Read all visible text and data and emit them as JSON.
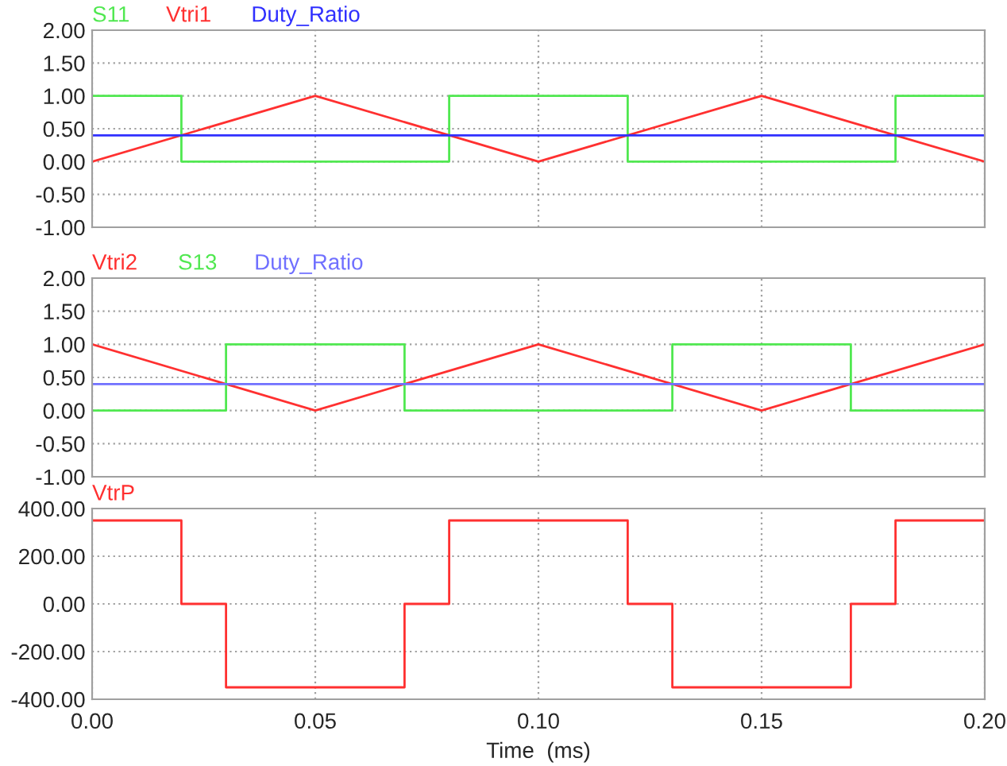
{
  "chart_data": [
    {
      "type": "line",
      "xlim": [
        0,
        0.2
      ],
      "ylim": [
        -1,
        2
      ],
      "xticks": [
        {
          "value": 0,
          "label": null
        },
        {
          "value": 0.05,
          "label": null
        },
        {
          "value": 0.1,
          "label": null
        },
        {
          "value": 0.15,
          "label": null
        },
        {
          "value": 0.2,
          "label": null
        }
      ],
      "yticks": [
        {
          "value": -1,
          "label": "-1.00"
        },
        {
          "value": -0.5,
          "label": "-0.50"
        },
        {
          "value": 0,
          "label": "0.00"
        },
        {
          "value": 0.5,
          "label": "0.50"
        },
        {
          "value": 1,
          "label": "1.00"
        },
        {
          "value": 1.5,
          "label": "1.50"
        },
        {
          "value": 2,
          "label": "2.00"
        }
      ],
      "grid": true,
      "tick_labels": "y",
      "series": [
        {
          "name": "S11",
          "type": "step",
          "color": "#50e850",
          "x": [
            0,
            0.02,
            0.08,
            0.12,
            0.18,
            0.2
          ],
          "values": [
            1,
            0,
            1,
            0,
            1,
            1
          ]
        },
        {
          "name": "Vtri1",
          "type": "line",
          "color": "#ff3030",
          "x": [
            0,
            0.05,
            0.1,
            0.15,
            0.2
          ],
          "values": [
            0,
            1,
            0,
            1,
            0
          ]
        },
        {
          "name": "Duty_Ratio",
          "type": "line",
          "color": "#3030ff",
          "x": [
            0,
            0.2
          ],
          "values": [
            0.4,
            0.4
          ]
        }
      ]
    },
    {
      "type": "line",
      "xlim": [
        0,
        0.2
      ],
      "ylim": [
        -1,
        2
      ],
      "xticks": [
        {
          "value": 0,
          "label": null
        },
        {
          "value": 0.05,
          "label": null
        },
        {
          "value": 0.1,
          "label": null
        },
        {
          "value": 0.15,
          "label": null
        },
        {
          "value": 0.2,
          "label": null
        }
      ],
      "yticks": [
        {
          "value": -1,
          "label": "-1.00"
        },
        {
          "value": -0.5,
          "label": "-0.50"
        },
        {
          "value": 0,
          "label": "0.00"
        },
        {
          "value": 0.5,
          "label": "0.50"
        },
        {
          "value": 1,
          "label": "1.00"
        },
        {
          "value": 1.5,
          "label": "1.50"
        },
        {
          "value": 2,
          "label": "2.00"
        }
      ],
      "grid": true,
      "tick_labels": "y",
      "series": [
        {
          "name": "Vtri2",
          "type": "line",
          "color": "#ff3030",
          "x": [
            0,
            0.05,
            0.1,
            0.15,
            0.2
          ],
          "values": [
            1,
            0,
            1,
            0,
            1
          ]
        },
        {
          "name": "S13",
          "type": "step",
          "color": "#50e850",
          "x": [
            0,
            0.03,
            0.07,
            0.13,
            0.17,
            0.2
          ],
          "values": [
            0,
            1,
            0,
            1,
            0,
            0
          ]
        },
        {
          "name": "Duty_Ratio",
          "type": "line",
          "color": "#7070ff",
          "x": [
            0,
            0.2
          ],
          "values": [
            0.4,
            0.4
          ]
        }
      ]
    },
    {
      "type": "step",
      "xlim": [
        0,
        0.2
      ],
      "ylim": [
        -400,
        400
      ],
      "xlabel": "Time  (ms)",
      "xticks": [
        {
          "value": 0,
          "label": "0.00"
        },
        {
          "value": 0.05,
          "label": "0.05"
        },
        {
          "value": 0.1,
          "label": "0.10"
        },
        {
          "value": 0.15,
          "label": "0.15"
        },
        {
          "value": 0.2,
          "label": "0.20"
        }
      ],
      "yticks": [
        {
          "value": -400,
          "label": "-400.00"
        },
        {
          "value": -200,
          "label": "-200.00"
        },
        {
          "value": 0,
          "label": "0.00"
        },
        {
          "value": 200,
          "label": "200.00"
        },
        {
          "value": 400,
          "label": "400.00"
        }
      ],
      "grid": true,
      "series": [
        {
          "name": "VtrP",
          "color": "#ff3030",
          "x": [
            0,
            0.02,
            0.03,
            0.07,
            0.08,
            0.12,
            0.13,
            0.17,
            0.18,
            0.2
          ],
          "values": [
            350,
            0,
            -350,
            0,
            350,
            0,
            -350,
            0,
            350,
            350
          ]
        }
      ]
    }
  ]
}
